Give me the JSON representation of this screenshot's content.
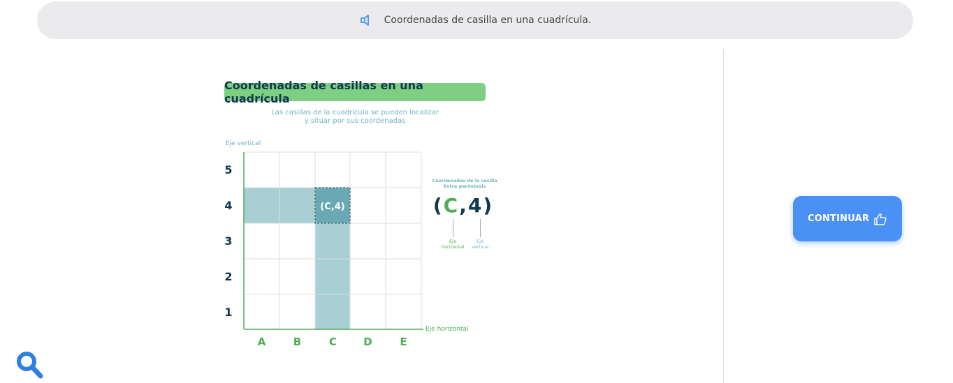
{
  "header": {
    "title": "Coordenadas de casilla en una cuadrícula.",
    "icon": "speaker-icon"
  },
  "diagram": {
    "title": "Coordenadas de casillas en una cuadrícula",
    "subtitle_line1": "Las casillas de la cuadrícula se pueden localizar",
    "subtitle_line2": "y situar por sus coordenadas",
    "y_axis_label": "Eje vertical",
    "x_axis_label": "Eje horizontal",
    "columns": [
      "A",
      "B",
      "C",
      "D",
      "E"
    ],
    "rows": [
      "5",
      "4",
      "3",
      "2",
      "1"
    ],
    "highlight_cell_label": "(C,4)",
    "caption_line1": "Coordenadas de la casilla",
    "caption_line2": "Entre paréntesis",
    "coord_open": "(",
    "coord_h": "C",
    "coord_sep": ",",
    "coord_v": "4",
    "coord_close": ")",
    "h_axis_note_1": "Eje",
    "h_axis_note_2": "horizontal",
    "v_axis_note_1": "Eje",
    "v_axis_note_2": "vertical",
    "colors": {
      "highlight": "#a8cfd4",
      "cell": "#6aa9b3",
      "title_bg": "#7fcf83",
      "axis_green": "#4fae55"
    }
  },
  "actions": {
    "continue_label": "CONTINUAR",
    "continue_icon": "thumbs-up-icon",
    "search_icon": "search-icon"
  }
}
